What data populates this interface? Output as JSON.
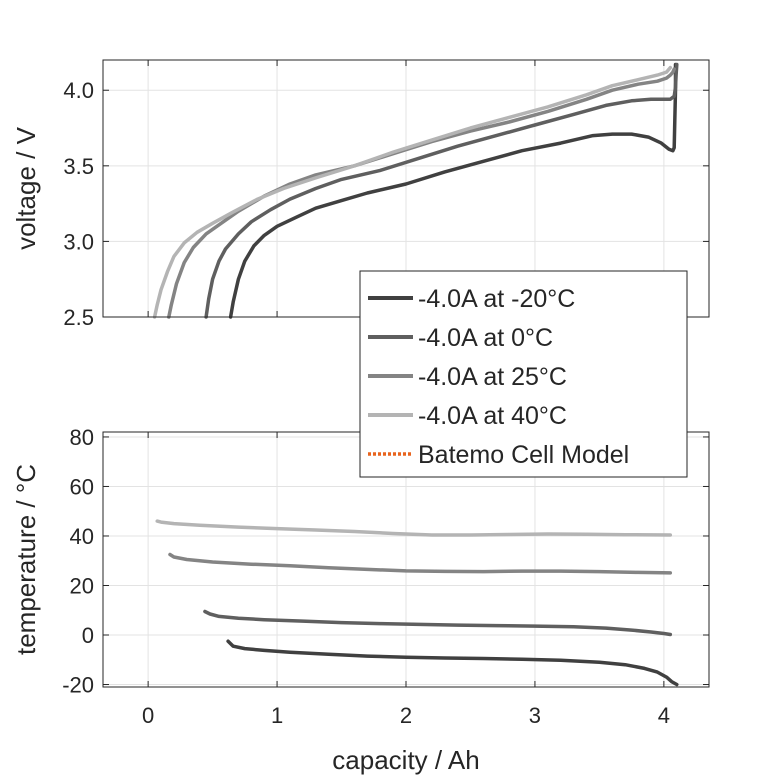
{
  "chart_data": [
    {
      "type": "line",
      "title": "",
      "xlabel": "",
      "ylabel": "voltage / V",
      "xlim": [
        -0.35,
        4.35
      ],
      "ylim": [
        2.5,
        4.2
      ],
      "xticks": [
        0,
        1,
        2,
        3,
        4
      ],
      "yticks": [
        2.5,
        3.0,
        3.5,
        4.0
      ],
      "ytick_labels": [
        "2.5",
        "3.0",
        "3.5",
        "4.0"
      ],
      "grid": true,
      "series": [
        {
          "name": "-4.0A at -20°C",
          "color": "#404040",
          "x": [
            0.64,
            0.66,
            0.7,
            0.75,
            0.82,
            0.9,
            1.0,
            1.15,
            1.3,
            1.5,
            1.7,
            2.0,
            2.3,
            2.6,
            2.9,
            3.2,
            3.45,
            3.6,
            3.75,
            3.88,
            3.98,
            4.04,
            4.07,
            4.08,
            4.085,
            4.09,
            4.09
          ],
          "y": [
            2.5,
            2.6,
            2.75,
            2.87,
            2.97,
            3.04,
            3.1,
            3.16,
            3.22,
            3.27,
            3.32,
            3.38,
            3.46,
            3.53,
            3.6,
            3.65,
            3.7,
            3.71,
            3.71,
            3.69,
            3.65,
            3.61,
            3.6,
            3.62,
            3.8,
            4.0,
            4.17
          ]
        },
        {
          "name": "-4.0A at 0°C",
          "color": "#5f5f5f",
          "x": [
            0.45,
            0.47,
            0.5,
            0.55,
            0.6,
            0.7,
            0.8,
            0.95,
            1.1,
            1.3,
            1.5,
            1.8,
            2.1,
            2.4,
            2.7,
            3.0,
            3.3,
            3.55,
            3.75,
            3.9,
            4.0,
            4.05,
            4.08,
            4.09,
            4.095,
            4.1
          ],
          "y": [
            2.5,
            2.62,
            2.75,
            2.87,
            2.95,
            3.05,
            3.13,
            3.21,
            3.28,
            3.35,
            3.41,
            3.47,
            3.55,
            3.63,
            3.7,
            3.77,
            3.84,
            3.9,
            3.93,
            3.94,
            3.94,
            3.94,
            3.96,
            4.02,
            4.1,
            4.17
          ]
        },
        {
          "name": "-4.0A at 25°C",
          "color": "#848484",
          "x": [
            0.16,
            0.18,
            0.22,
            0.28,
            0.35,
            0.45,
            0.55,
            0.7,
            0.9,
            1.1,
            1.3,
            1.6,
            1.9,
            2.2,
            2.5,
            2.8,
            3.1,
            3.4,
            3.6,
            3.8,
            3.95,
            4.02,
            4.05,
            4.07,
            4.08
          ],
          "y": [
            2.5,
            2.58,
            2.72,
            2.86,
            2.96,
            3.05,
            3.11,
            3.2,
            3.3,
            3.38,
            3.44,
            3.5,
            3.58,
            3.66,
            3.73,
            3.79,
            3.86,
            3.94,
            4.0,
            4.04,
            4.06,
            4.08,
            4.1,
            4.12,
            4.14
          ]
        },
        {
          "name": "-4.0A at 40°C",
          "color": "#b4b4b4",
          "x": [
            0.05,
            0.07,
            0.1,
            0.15,
            0.2,
            0.28,
            0.38,
            0.5,
            0.65,
            0.85,
            1.05,
            1.3,
            1.6,
            1.9,
            2.2,
            2.5,
            2.8,
            3.1,
            3.4,
            3.6,
            3.8,
            3.95,
            4.02,
            4.05
          ],
          "y": [
            2.5,
            2.58,
            2.68,
            2.8,
            2.9,
            2.99,
            3.06,
            3.12,
            3.19,
            3.28,
            3.35,
            3.42,
            3.5,
            3.59,
            3.67,
            3.75,
            3.82,
            3.89,
            3.97,
            4.03,
            4.07,
            4.1,
            4.12,
            4.15
          ]
        }
      ]
    },
    {
      "type": "line",
      "title": "",
      "xlabel": "capacity / Ah",
      "ylabel": "temperature / °C",
      "xlim": [
        -0.35,
        4.35
      ],
      "ylim": [
        -21,
        82
      ],
      "xticks": [
        0,
        1,
        2,
        3,
        4
      ],
      "yticks": [
        -20,
        0,
        20,
        40,
        60,
        80
      ],
      "grid": true,
      "series": [
        {
          "name": "-4.0A at -20°C",
          "color": "#404040",
          "x": [
            0.62,
            0.66,
            0.75,
            0.9,
            1.1,
            1.4,
            1.7,
            2.0,
            2.3,
            2.6,
            2.9,
            3.2,
            3.5,
            3.7,
            3.85,
            3.95,
            4.02,
            4.06,
            4.1
          ],
          "y": [
            -2.5,
            -4.5,
            -5.5,
            -6.2,
            -7.0,
            -7.8,
            -8.5,
            -9.0,
            -9.3,
            -9.5,
            -9.8,
            -10.2,
            -11.0,
            -12.0,
            -13.5,
            -15.0,
            -17.0,
            -18.8,
            -20.0
          ]
        },
        {
          "name": "-4.0A at 0°C",
          "color": "#5f5f5f",
          "x": [
            0.44,
            0.48,
            0.55,
            0.7,
            0.9,
            1.2,
            1.5,
            1.8,
            2.1,
            2.4,
            2.7,
            3.0,
            3.3,
            3.55,
            3.75,
            3.9,
            4.0,
            4.05
          ],
          "y": [
            9.5,
            8.5,
            7.5,
            6.8,
            6.2,
            5.6,
            5.0,
            4.6,
            4.3,
            4.0,
            3.8,
            3.6,
            3.3,
            2.8,
            2.0,
            1.2,
            0.6,
            0.2
          ]
        },
        {
          "name": "-4.0A at 25°C",
          "color": "#848484",
          "x": [
            0.17,
            0.2,
            0.3,
            0.5,
            0.8,
            1.1,
            1.4,
            1.7,
            2.0,
            2.3,
            2.6,
            2.9,
            3.2,
            3.5,
            3.8,
            4.05
          ],
          "y": [
            32.5,
            31.5,
            30.5,
            29.5,
            28.6,
            28.0,
            27.2,
            26.5,
            25.9,
            25.7,
            25.6,
            25.8,
            25.8,
            25.6,
            25.3,
            25.1
          ]
        },
        {
          "name": "-4.0A at 40°C",
          "color": "#b4b4b4",
          "x": [
            0.07,
            0.1,
            0.2,
            0.4,
            0.7,
            1.0,
            1.3,
            1.6,
            1.9,
            2.2,
            2.5,
            2.8,
            3.1,
            3.4,
            3.7,
            4.05
          ],
          "y": [
            46.0,
            45.6,
            45.0,
            44.3,
            43.6,
            43.0,
            42.4,
            41.8,
            41.0,
            40.4,
            40.4,
            40.6,
            40.8,
            40.7,
            40.5,
            40.4
          ]
        }
      ]
    }
  ],
  "legend": {
    "placement": "overlapping lower-right of top plot",
    "entries": [
      {
        "label": "-4.0A at -20°C",
        "color": "#404040",
        "style": "solid"
      },
      {
        "label": "-4.0A at 0°C",
        "color": "#5f5f5f",
        "style": "solid"
      },
      {
        "label": "-4.0A at 25°C",
        "color": "#848484",
        "style": "solid"
      },
      {
        "label": "-4.0A at 40°C",
        "color": "#b4b4b4",
        "style": "solid"
      },
      {
        "label": "Batemo Cell Model",
        "color": "#e8641e",
        "style": "dotted"
      }
    ]
  }
}
